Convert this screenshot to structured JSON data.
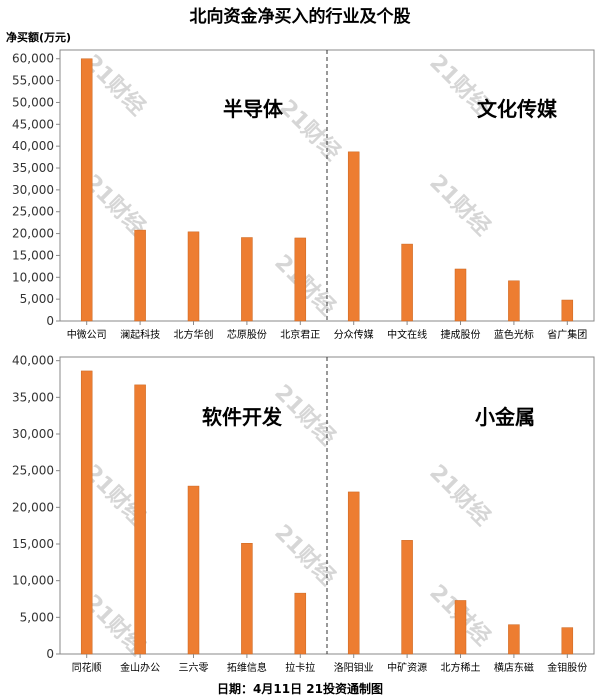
{
  "title": "北向资金净买入的行业及个股",
  "y_unit": "净买额(万元)",
  "footer": "日期：4月11日 21投资通制图",
  "watermark": "21财经",
  "colors": {
    "bar": "#ED7D31",
    "bar_stroke": "#C9651F",
    "axis": "#888888",
    "divider": "#333333"
  },
  "chart_data": [
    {
      "type": "bar",
      "ylim": [
        0,
        62000
      ],
      "yticks": [
        0,
        5000,
        10000,
        15000,
        20000,
        25000,
        30000,
        35000,
        40000,
        45000,
        50000,
        55000,
        60000
      ],
      "groups": [
        "半导体",
        "文化传媒"
      ],
      "categories": [
        "中微公司",
        "澜起科技",
        "北方华创",
        "芯原股份",
        "北京君正",
        "分众传媒",
        "中文在线",
        "捷成股份",
        "蓝色光标",
        "省广集团"
      ],
      "values": [
        60000,
        20800,
        20400,
        19100,
        19000,
        38700,
        17600,
        11900,
        9200,
        4800
      ]
    },
    {
      "type": "bar",
      "ylim": [
        0,
        40500
      ],
      "yticks": [
        0,
        5000,
        10000,
        15000,
        20000,
        25000,
        30000,
        35000,
        40000
      ],
      "groups": [
        "软件开发",
        "小金属"
      ],
      "categories": [
        "同花顺",
        "金山办公",
        "三六零",
        "拓维信息",
        "拉卡拉",
        "洛阳钼业",
        "中矿资源",
        "北方稀土",
        "横店东磁",
        "金钼股份"
      ],
      "values": [
        38600,
        36700,
        22900,
        15100,
        8300,
        22100,
        15500,
        7300,
        4000,
        3600
      ]
    }
  ]
}
